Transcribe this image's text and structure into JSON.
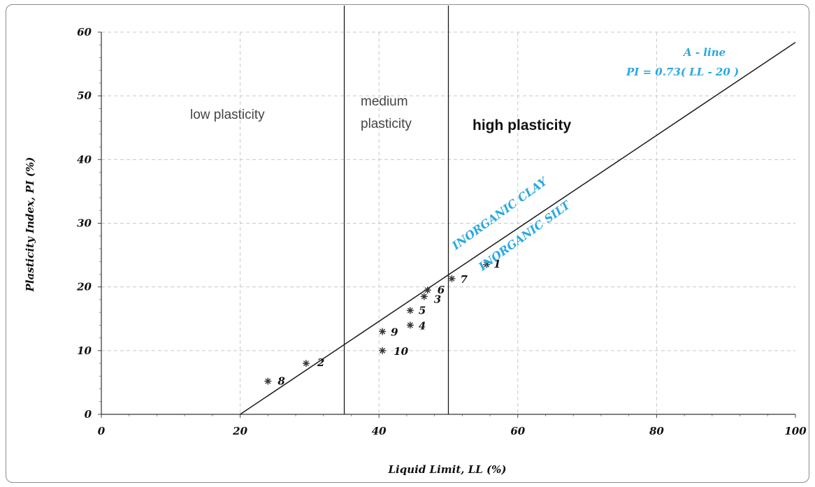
{
  "chart_data": {
    "type": "scatter",
    "xlabel": "Liquid Limit, LL (%)",
    "ylabel": "Plasticity Index, PI (%)",
    "xlim": [
      0,
      100
    ],
    "ylim": [
      0,
      60
    ],
    "x_ticks": [
      "0",
      "20",
      "40",
      "60",
      "80",
      "100"
    ],
    "y_ticks": [
      "0",
      "10",
      "20",
      "30",
      "40",
      "50",
      "60"
    ],
    "grid": true,
    "points": [
      {
        "label": "1",
        "x": 55.5,
        "y": 23.5
      },
      {
        "label": "2",
        "x": 29.5,
        "y": 8
      },
      {
        "label": "3",
        "x": 46.5,
        "y": 18.5
      },
      {
        "label": "4",
        "x": 44.5,
        "y": 14
      },
      {
        "label": "5",
        "x": 44.5,
        "y": 16.3
      },
      {
        "label": "6",
        "x": 47,
        "y": 19.5
      },
      {
        "label": "7",
        "x": 50.5,
        "y": 21.3
      },
      {
        "label": "8",
        "x": 24,
        "y": 5.2
      },
      {
        "label": "9",
        "x": 40.5,
        "y": 13
      },
      {
        "label": "10",
        "x": 40.5,
        "y": 10
      }
    ],
    "a_line": {
      "slope": 0.73,
      "intercept_ll": 20,
      "name": "A - line",
      "equation": "PI = 0.73( LL - 20 )"
    },
    "vertical_lines": [
      35,
      50
    ],
    "zones": [
      "low plasticity",
      "medium plasticity",
      "high plasticity"
    ],
    "annotations": [
      "INORGANIC CLAY",
      "INORGANIC SILT"
    ]
  },
  "labels": {
    "zone_low": "low plasticity",
    "zone_medium_1": "medium",
    "zone_medium_2": "plasticity",
    "zone_high": "high plasticity",
    "aline_name": "A - line",
    "aline_eq": "PI = 0.73( LL - 20 )",
    "clay": "INORGANIC CLAY",
    "silt": "INORGANIC SILT",
    "xlabel": "Liquid Limit, LL (%)",
    "ylabel": "Plasticity Index, PI (%)"
  },
  "colors": {
    "annotation": "#29a8e0",
    "grid": "#c8c8c8",
    "line": "#1a1a1a"
  }
}
